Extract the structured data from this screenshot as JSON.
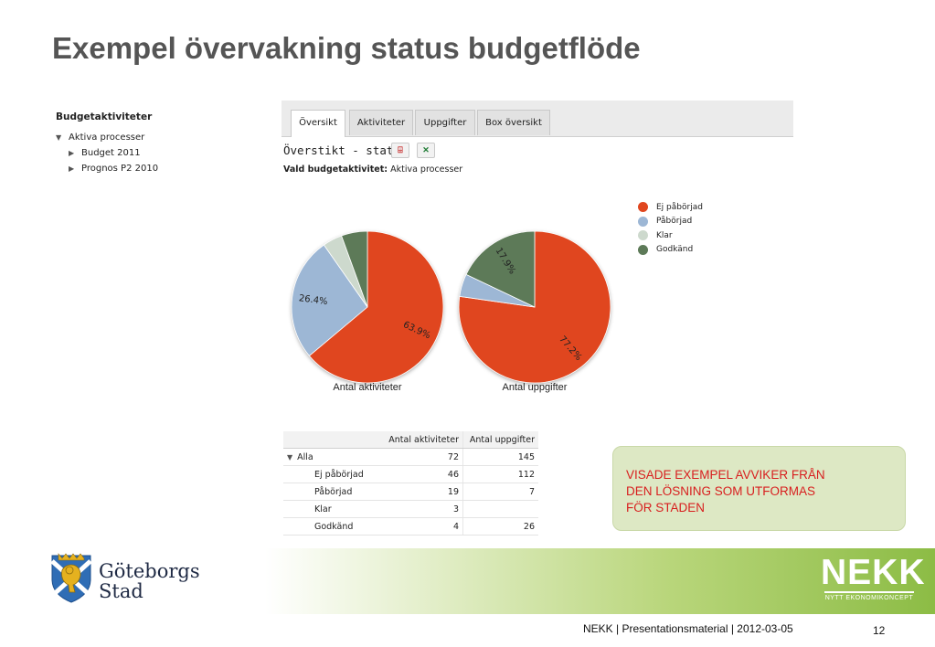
{
  "slide": {
    "title": "Exempel övervakning status budgetflöde",
    "footer": "NEKK |  Presentationsmaterial | 2012-03-05",
    "page_number": "12"
  },
  "tree": {
    "heading": "Budgetaktiviteter",
    "root": "Aktiva processer",
    "children": [
      "Budget 2011",
      "Prognos P2 2010"
    ]
  },
  "tabs": [
    "Översikt",
    "Aktiviteter",
    "Uppgifter",
    "Box översikt"
  ],
  "active_tab": "Översikt",
  "status": {
    "title": "Överstikt - status",
    "selected_label": "Vald budgetaktivitet:",
    "selected_value": "Aktiva processer",
    "pdf_icon": "pdf-icon",
    "excel_icon": "excel-icon"
  },
  "chart_data": [
    {
      "type": "pie",
      "title": "Antal aktiviteter",
      "categories": [
        "Ej påbörjad",
        "Påbörjad",
        "Klar",
        "Godkänd"
      ],
      "values": [
        46,
        19,
        3,
        4
      ],
      "labels": [
        "63.9%",
        "26.4%",
        "",
        ""
      ],
      "colors": [
        "#e0461f",
        "#9db7d5",
        "#cdd9cd",
        "#5d7a58"
      ]
    },
    {
      "type": "pie",
      "title": "Antal uppgifter",
      "categories": [
        "Ej påbörjad",
        "Påbörjad",
        "Klar",
        "Godkänd"
      ],
      "values": [
        112,
        7,
        0,
        26
      ],
      "labels": [
        "77.2%",
        "",
        "",
        "17.9%"
      ],
      "colors": [
        "#e0461f",
        "#9db7d5",
        "#cdd9cd",
        "#5d7a58"
      ]
    }
  ],
  "legend": [
    {
      "label": "Ej påbörjad",
      "color": "#e0461f"
    },
    {
      "label": "Påbörjad",
      "color": "#9db7d5"
    },
    {
      "label": "Klar",
      "color": "#cdd9cd"
    },
    {
      "label": "Godkänd",
      "color": "#5d7a58"
    }
  ],
  "table": {
    "headers": [
      "",
      "Antal aktiviteter",
      "Antal uppgifter"
    ],
    "group": {
      "label": "Alla",
      "activities": "72",
      "tasks": "145"
    },
    "rows": [
      {
        "label": "Ej påbörjad",
        "activities": "46",
        "tasks": "112"
      },
      {
        "label": "Påbörjad",
        "activities": "19",
        "tasks": "7"
      },
      {
        "label": "Klar",
        "activities": "3",
        "tasks": ""
      },
      {
        "label": "Godkänd",
        "activities": "4",
        "tasks": "26"
      }
    ]
  },
  "note": {
    "lines": [
      "VISADE EXEMPEL AVVIKER FRÅN",
      "DEN LÖSNING SOM UTFORMAS",
      "FÖR STADEN"
    ]
  },
  "logos": {
    "city_line1": "Göteborgs",
    "city_line2": "Stad",
    "nekk_word": "NEKK",
    "nekk_tagline": "NYTT EKONOMIKONCEPT"
  }
}
